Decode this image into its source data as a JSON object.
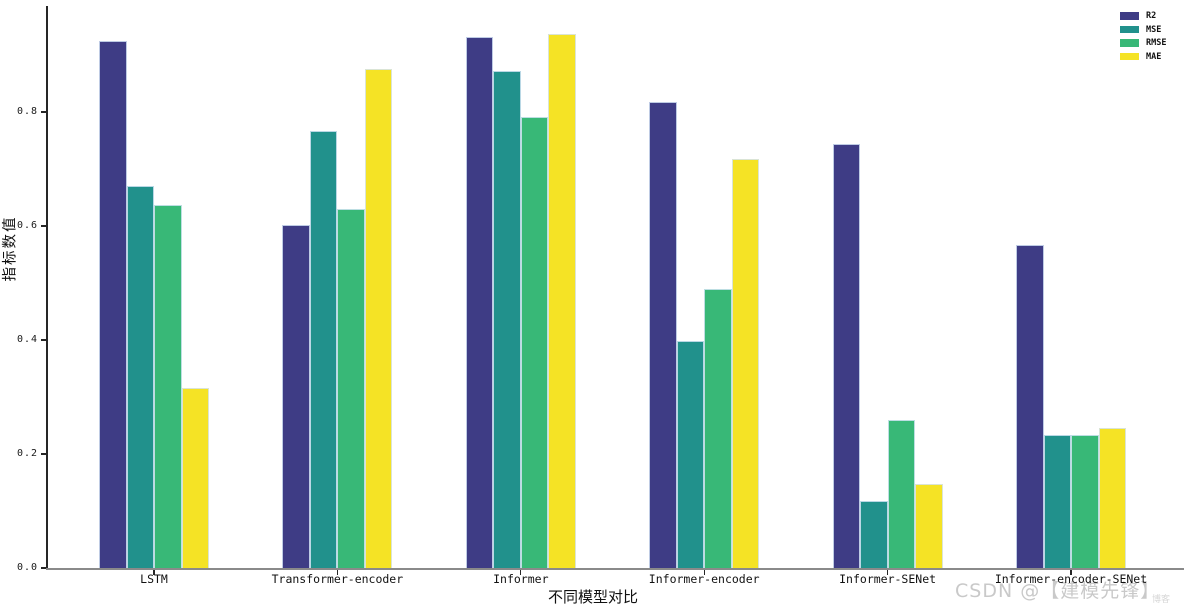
{
  "chart_data": {
    "type": "bar",
    "title": "",
    "xlabel": "不同模型对比",
    "ylabel": "指标数值",
    "categories": [
      "LSTM",
      "Transformer-encoder",
      "Informer",
      "Informer-encoder",
      "Informer-SENet",
      "Informer-encoder-SENet"
    ],
    "series": [
      {
        "name": "R2",
        "color": "#3e3c85",
        "values": [
          0.925,
          0.602,
          0.932,
          0.817,
          0.744,
          0.567
        ]
      },
      {
        "name": "MSE",
        "color": "#21918c",
        "values": [
          0.67,
          0.767,
          0.872,
          0.398,
          0.117,
          0.234
        ]
      },
      {
        "name": "RMSE",
        "color": "#38b877",
        "values": [
          0.636,
          0.63,
          0.791,
          0.49,
          0.26,
          0.234
        ]
      },
      {
        "name": "MAE",
        "color": "#f5e325",
        "values": [
          0.316,
          0.875,
          0.937,
          0.717,
          0.148,
          0.245
        ]
      }
    ],
    "ylim": [
      0,
      0.986
    ],
    "yticks": [
      0.0,
      0.2,
      0.4,
      0.6,
      0.8
    ],
    "grid": false,
    "legend_position": "top-right"
  },
  "watermark": {
    "text": "CSDN @【建模先锋】",
    "small": "博客"
  }
}
